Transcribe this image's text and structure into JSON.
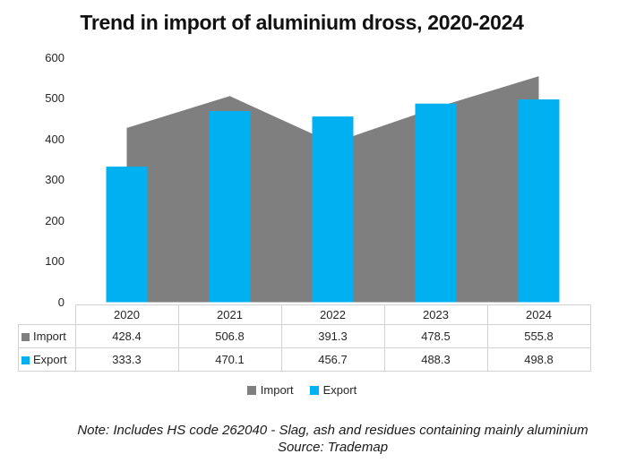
{
  "title": "Trend in import of aluminium dross, 2020-2024",
  "chart_data": {
    "type": "combo",
    "description": "Gray area series (Import) behind blue column series (Export), values in same units",
    "categories": [
      "2020",
      "2021",
      "2022",
      "2023",
      "2024"
    ],
    "series": [
      {
        "name": "Import",
        "type": "area",
        "color": "#7F7F7F",
        "values": [
          428.4,
          506.8,
          391.3,
          478.5,
          555.8
        ]
      },
      {
        "name": "Export",
        "type": "bar",
        "color": "#00B0F0",
        "values": [
          333.3,
          470.1,
          456.7,
          488.3,
          498.8
        ]
      }
    ],
    "ylim": [
      0,
      600
    ],
    "yticks": [
      "600",
      "500",
      "400",
      "300",
      "200",
      "100",
      "0"
    ],
    "grid": false,
    "legend_position": "bottom",
    "data_table_shown": true
  },
  "note": {
    "line1": "Note: Includes HS code 262040 - Slag, ash and residues containing mainly aluminium",
    "line2": "Source: Trademap"
  },
  "colors": {
    "import": "#7F7F7F",
    "export": "#00B0F0",
    "table_border": "#D2D2D2",
    "text": "#262626"
  }
}
